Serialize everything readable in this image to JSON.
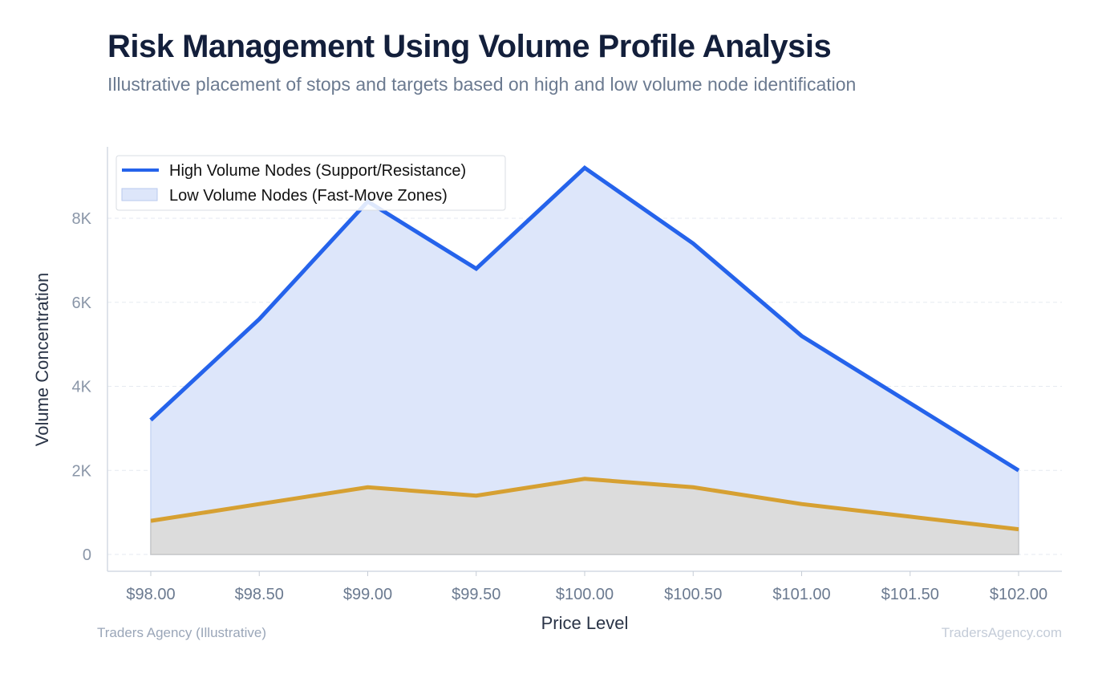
{
  "header": {
    "title": "Risk Management Using Volume Profile Analysis",
    "subtitle": "Illustrative placement of stops and targets based on high and low volume node identification"
  },
  "footer": {
    "left": "Traders Agency (Illustrative)",
    "right": "TradersAgency.com"
  },
  "chart_data": {
    "type": "area",
    "title": "Risk Management Using Volume Profile Analysis",
    "subtitle": "Illustrative placement of stops and targets based on high and low volume node identification",
    "xlabel": "Price Level",
    "ylabel": "Volume Concentration",
    "categories": [
      "$98.00",
      "$98.50",
      "$99.00",
      "$99.50",
      "$100.00",
      "$100.50",
      "$101.00",
      "$101.50",
      "$102.00"
    ],
    "y_ticks": [
      "0",
      "2K",
      "4K",
      "6K",
      "8K"
    ],
    "y_tick_values": [
      0,
      2000,
      4000,
      6000,
      8000
    ],
    "ylim": [
      -400,
      9700
    ],
    "grid": true,
    "legend_position": "top-left",
    "series": [
      {
        "name": "High Volume Nodes (Support/Resistance)",
        "values": [
          3200,
          5600,
          8400,
          6800,
          9200,
          7400,
          5200,
          3600,
          2000
        ],
        "color": "#2563eb",
        "fill": "#dde6fa"
      },
      {
        "name": "Low Volume Nodes (Fast-Move Zones)",
        "values": [
          800,
          1200,
          1600,
          1400,
          1800,
          1600,
          1200,
          900,
          600
        ],
        "color": "#d6a032",
        "fill": "#dcdcdc"
      }
    ]
  }
}
